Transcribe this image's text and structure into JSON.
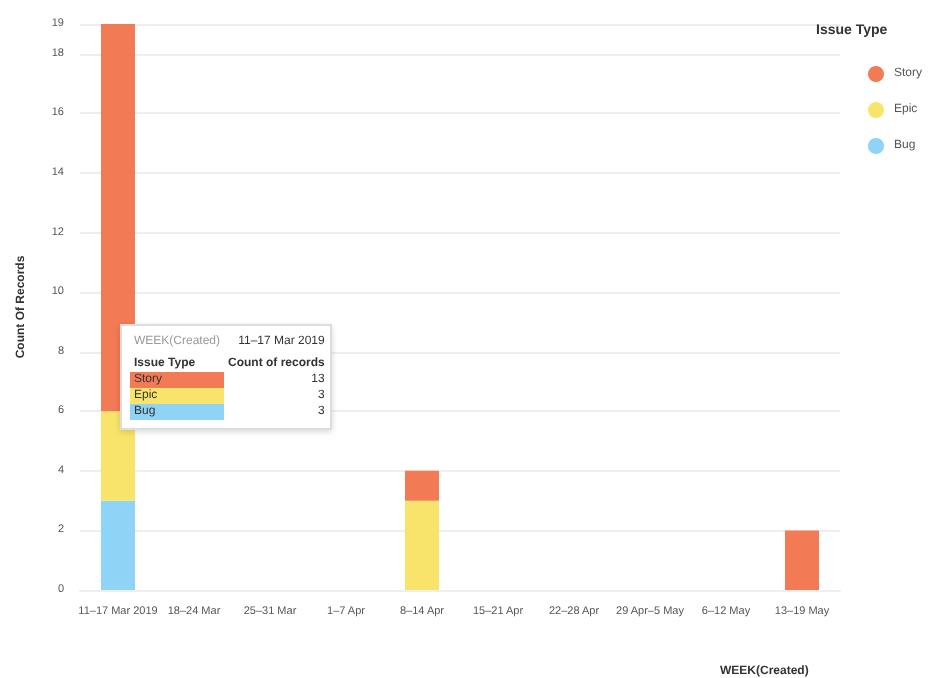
{
  "chart_data": {
    "type": "bar",
    "stacked": true,
    "categories": [
      "11–17 Mar 2019",
      "18–24 Mar",
      "25–31 Mar",
      "1–7 Apr",
      "8–14 Apr",
      "15–21 Apr",
      "22–28 Apr",
      "29 Apr–5 May",
      "6–12 May",
      "13–19 May"
    ],
    "series": [
      {
        "name": "Bug",
        "color": "#8fd3f7",
        "values": [
          3,
          0,
          0,
          0,
          0,
          0,
          0,
          0,
          0,
          0
        ]
      },
      {
        "name": "Epic",
        "color": "#f8e46a",
        "values": [
          3,
          0,
          0,
          0,
          3,
          0,
          0,
          0,
          0,
          0
        ]
      },
      {
        "name": "Story",
        "color": "#f27a55",
        "values": [
          13,
          0,
          0,
          0,
          1,
          0,
          0,
          0,
          0,
          2
        ]
      }
    ],
    "ylabel": "Count Of Records",
    "xlabel": "WEEK(Created)",
    "legend_title": "Issue Type",
    "legend": "top right",
    "ylim": [
      0,
      19
    ],
    "yticks": [
      0,
      2,
      4,
      6,
      8,
      10,
      12,
      14,
      16,
      18,
      19
    ],
    "grid": "y",
    "annotations": [
      "WEEK(Created)",
      "11–17 Mar 2019",
      "Issue Type",
      "Count of records",
      "Story",
      "13",
      "Epic",
      "3",
      "Bug",
      "3"
    ]
  }
}
